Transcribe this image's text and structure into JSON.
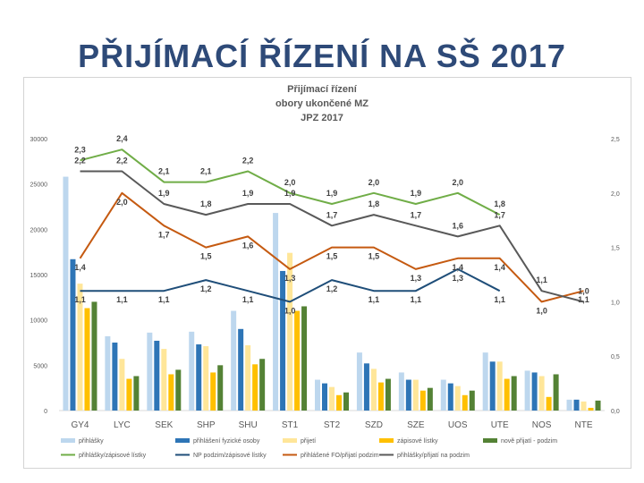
{
  "slide": {
    "title": "PŘIJÍMACÍ ŘÍZENÍ NA SŠ 2017"
  },
  "chart_data": {
    "type": "bar",
    "title_lines": [
      "Přijímací řízení",
      "obory ukončené MZ",
      "JPZ 2017"
    ],
    "categories": [
      "GY4",
      "LYC",
      "SEK",
      "SHP",
      "SHU",
      "ST1",
      "ST2",
      "SZD",
      "SZE",
      "UOS",
      "UTE",
      "NOS",
      "NTE"
    ],
    "left_axis": {
      "min": 0,
      "max": 30000,
      "ticks": [
        0,
        5000,
        10000,
        15000,
        20000,
        25000,
        30000
      ],
      "tick_labels": [
        "0",
        "5000",
        "10000",
        "15000",
        "20000",
        "25000",
        "30000"
      ]
    },
    "right_axis": {
      "min": 0,
      "max": 2.5,
      "ticks": [
        0,
        0.5,
        1,
        1.5,
        2,
        2.5
      ],
      "tick_labels": [
        "0,0",
        "0,5",
        "1,0",
        "1,5",
        "2,0",
        "2,5"
      ]
    },
    "bar_series": [
      {
        "name": "přihlášky",
        "color": "#bdd7ee",
        "values": [
          25800,
          8200,
          8600,
          8700,
          11000,
          21800,
          3400,
          6400,
          4200,
          3400,
          6400,
          4400,
          1200
        ]
      },
      {
        "name": "přihlášení fyzické osoby",
        "color": "#2e75b6",
        "values": [
          16700,
          7500,
          7700,
          7300,
          9000,
          15400,
          3000,
          5200,
          3400,
          3000,
          5400,
          4200,
          1200
        ]
      },
      {
        "name": "přijetí",
        "color": "#ffe699",
        "values": [
          14000,
          5700,
          6800,
          7100,
          7200,
          17400,
          2600,
          4600,
          3400,
          2700,
          5400,
          3800,
          1000
        ]
      },
      {
        "name": "zápisové lístky",
        "color": "#ffc000",
        "values": [
          11300,
          3500,
          4000,
          4200,
          5100,
          11000,
          1700,
          3100,
          2200,
          1700,
          3500,
          1500,
          300
        ]
      },
      {
        "name": "nově přijatí - podzim",
        "color": "#548235",
        "values": [
          12000,
          3800,
          4500,
          5000,
          5700,
          11500,
          2000,
          3500,
          2500,
          2200,
          3800,
          4000,
          1100
        ]
      }
    ],
    "line_series": [
      {
        "name": "přihlášky/zápisové lístky",
        "color": "#70ad47",
        "values": [
          2.3,
          2.4,
          2.1,
          2.1,
          2.2,
          2.0,
          1.9,
          2.0,
          1.9,
          2.0,
          1.8,
          null,
          null
        ],
        "labels": [
          "2,3",
          "2,4",
          "2,1",
          "2,1",
          "2,2",
          "2,0",
          "1,9",
          "2,0",
          "1,9",
          "2,0",
          "1,8",
          "",
          ""
        ]
      },
      {
        "name": "NP podzim/zápisové lístky",
        "color": "#1f4e79",
        "values": [
          1.1,
          1.1,
          1.1,
          1.2,
          1.1,
          1.0,
          1.2,
          1.1,
          1.1,
          1.3,
          1.1,
          null,
          null
        ],
        "labels": [
          "1,1",
          "1,1",
          "1,1",
          "1,2",
          "1,1",
          "1,0",
          "1,2",
          "1,1",
          "1,1",
          "1,3",
          "1,1",
          "",
          ""
        ]
      },
      {
        "name": "přihlášené FO/přijatí podzim",
        "color": "#c55a11",
        "values": [
          1.4,
          2.0,
          1.7,
          1.5,
          1.6,
          1.3,
          1.5,
          1.5,
          1.3,
          1.4,
          1.4,
          1.0,
          1.1
        ],
        "labels": [
          "1,4",
          "2,0",
          "1,7",
          "1,5",
          "1,6",
          "1,3",
          "1,5",
          "1,5",
          "1,3",
          "1,4",
          "1,4",
          "1,0",
          "1,1"
        ]
      },
      {
        "name": "přihlášky/přijatí na podzim",
        "color": "#595959",
        "values": [
          2.2,
          2.2,
          1.9,
          1.8,
          1.9,
          1.9,
          1.7,
          1.8,
          1.7,
          1.6,
          1.7,
          1.1,
          1.0
        ],
        "labels": [
          "2,2",
          "2,2",
          "1,9",
          "1,8",
          "1,9",
          "1,9",
          "1,7",
          "1,8",
          "1,7",
          "1,6",
          "1,7",
          "1,1",
          "1,0"
        ]
      }
    ],
    "legend_position": "bottom",
    "grid": false
  }
}
